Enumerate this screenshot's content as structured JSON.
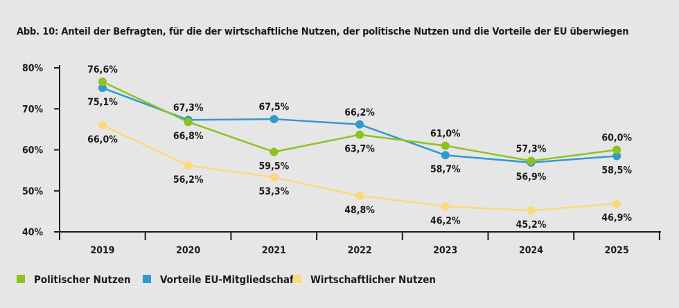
{
  "chart_data": {
    "type": "line",
    "title": "Abb. 10: Anteil der Befragten, für die der wirtschaftliche Nutzen, der politische Nutzen und die Vorteile der EU überwiegen",
    "xlabel": "",
    "ylabel": "",
    "categories": [
      "2019",
      "2020",
      "2021",
      "2022",
      "2023",
      "2024",
      "2025"
    ],
    "ylim": [
      40,
      80
    ],
    "yticks": [
      40,
      50,
      60,
      70,
      80
    ],
    "ytick_labels": [
      "40%",
      "50%",
      "60%",
      "70%",
      "80%"
    ],
    "grid": false,
    "legend_position": "bottom-left",
    "series": [
      {
        "name": "Politischer Nutzen",
        "color": "#8dc21f",
        "values": [
          76.6,
          66.8,
          59.5,
          63.7,
          61.0,
          57.3,
          60.0
        ],
        "labels": [
          "76,6%",
          "66,8%",
          "59,5%",
          "63,7%",
          "61,0%",
          "57,3%",
          "60,0%"
        ]
      },
      {
        "name": "Vorteile EU-Mitgliedschaft",
        "color": "#3399cc",
        "values": [
          75.1,
          67.3,
          67.5,
          66.2,
          58.7,
          56.9,
          58.5
        ],
        "labels": [
          "75,1%",
          "67,3%",
          "67,5%",
          "66,2%",
          "58,7%",
          "56,9%",
          "58,5%"
        ]
      },
      {
        "name": "Wirtschaftlicher Nutzen",
        "color": "#fbd97a",
        "values": [
          66.0,
          56.2,
          53.3,
          48.8,
          46.2,
          45.2,
          46.9
        ],
        "labels": [
          "66,0%",
          "56,2%",
          "53,3%",
          "48,8%",
          "46,2%",
          "45,2%",
          "46,9%"
        ]
      }
    ]
  }
}
